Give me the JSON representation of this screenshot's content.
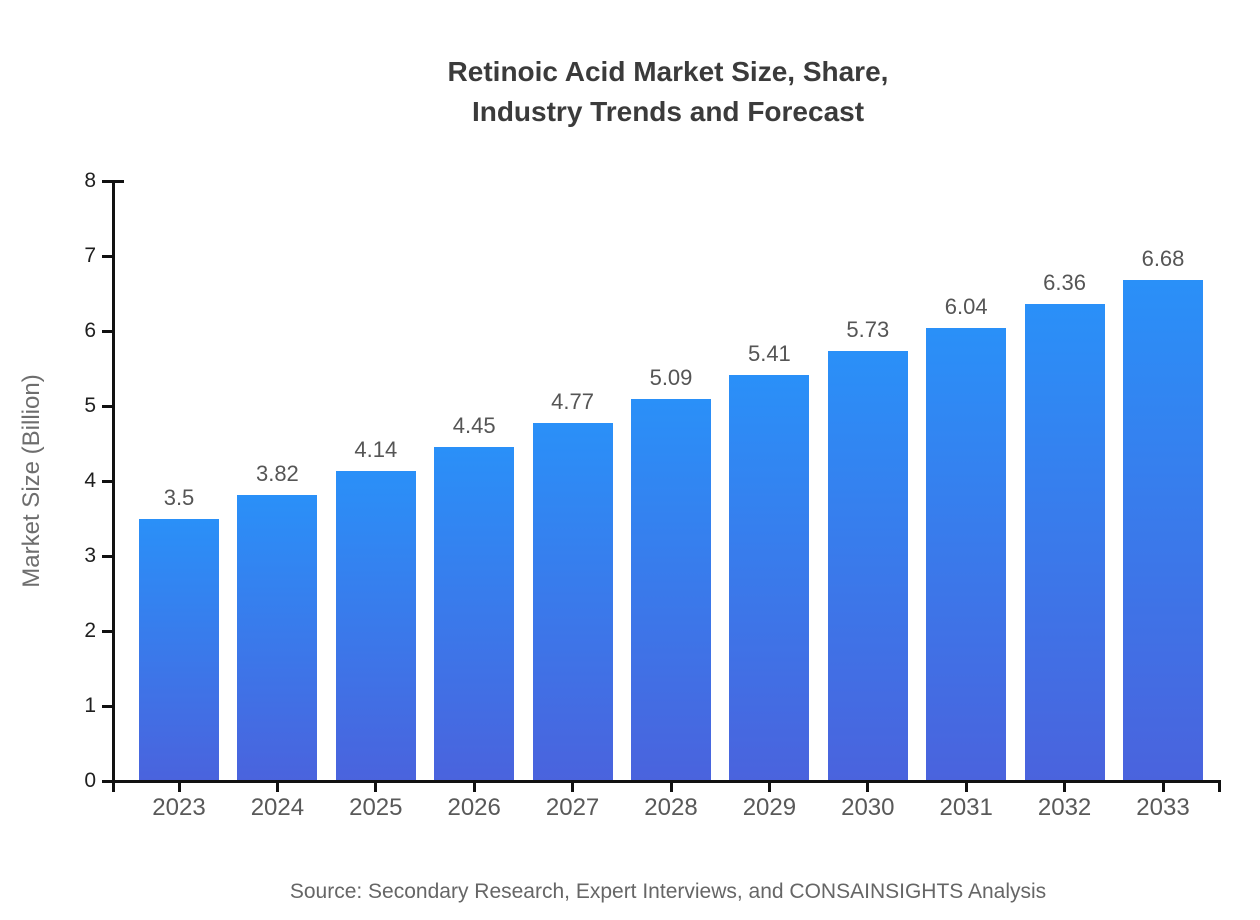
{
  "title": {
    "line1": "Retinoic Acid Market Size, Share,",
    "line2": "Industry Trends and Forecast"
  },
  "source": "Source: Secondary Research, Expert Interviews, and CONSAINSIGHTS Analysis",
  "chart_data": {
    "type": "bar",
    "title": "Retinoic Acid Market Size, Share, Industry Trends and Forecast",
    "categories": [
      "2023",
      "2024",
      "2025",
      "2026",
      "2027",
      "2028",
      "2029",
      "2030",
      "2031",
      "2032",
      "2033"
    ],
    "values": [
      3.5,
      3.82,
      4.14,
      4.45,
      4.77,
      5.09,
      5.41,
      5.73,
      6.04,
      6.36,
      6.68
    ],
    "xlabel": "",
    "ylabel": "Market Size (Billion)",
    "ylim": [
      0,
      8
    ],
    "yticks": [
      0,
      1,
      2,
      3,
      4,
      5,
      6,
      7,
      8
    ],
    "grid": false,
    "legend": false,
    "colors": {
      "bar_gradient_top": "#2A90F8",
      "bar_gradient_bottom": "#4A63DD",
      "axis": "#111111",
      "title_text": "#3B3B3B",
      "label_text": "#595959",
      "source_text": "#666666"
    }
  }
}
